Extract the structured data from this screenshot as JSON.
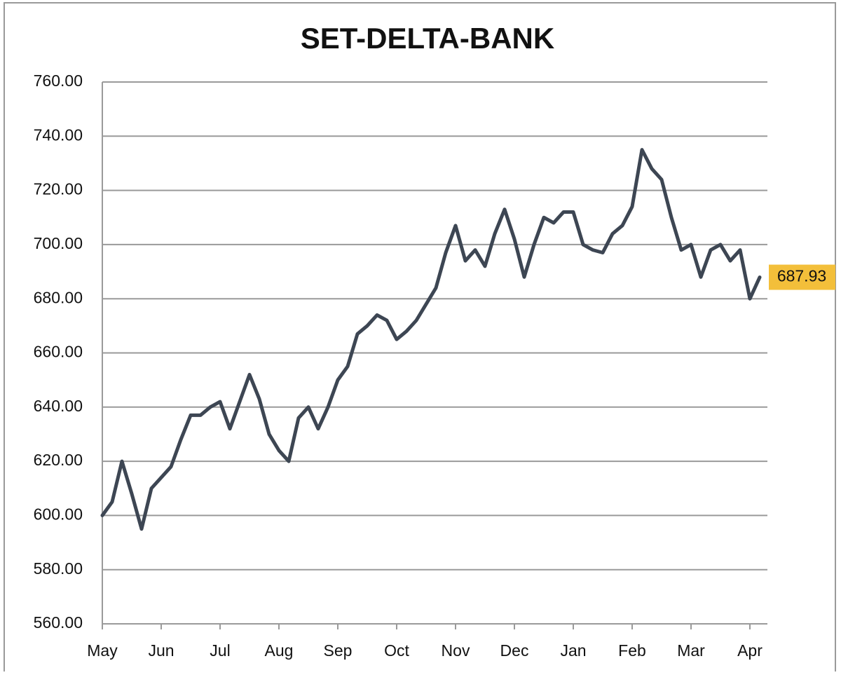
{
  "chart_data": {
    "type": "line",
    "title": "SET-DELTA-BANK",
    "categories": [
      "May",
      null,
      null,
      null,
      null,
      null,
      "Jun",
      null,
      null,
      null,
      null,
      null,
      "Jul",
      null,
      null,
      null,
      null,
      null,
      "Aug",
      null,
      null,
      null,
      null,
      null,
      "Sep",
      null,
      null,
      null,
      null,
      null,
      "Oct",
      null,
      null,
      null,
      null,
      null,
      "Nov",
      null,
      null,
      null,
      null,
      null,
      "Dec",
      null,
      null,
      null,
      null,
      null,
      "Jan",
      null,
      null,
      null,
      null,
      null,
      "Feb",
      null,
      null,
      null,
      null,
      null,
      "Mar",
      null,
      null,
      null,
      null,
      null,
      "Apr",
      null
    ],
    "series": [
      {
        "name": "SET-DELTA-BANK",
        "color": "#3d4653",
        "values": [
          600,
          605,
          620,
          608,
          595,
          610,
          614,
          618,
          628,
          637,
          637,
          640,
          642,
          632,
          642,
          652,
          643,
          630,
          624,
          620,
          636,
          640,
          632,
          640,
          650,
          655,
          667,
          670,
          674,
          672,
          665,
          668,
          672,
          678,
          684,
          697,
          707,
          694,
          698,
          692,
          704,
          713,
          702,
          688,
          700,
          710,
          708,
          712,
          712,
          700,
          698,
          697,
          704,
          707,
          714,
          735,
          728,
          724,
          710,
          698,
          700,
          688,
          698,
          700,
          694,
          698,
          680,
          687.93
        ]
      }
    ],
    "ylim": [
      560,
      760
    ],
    "yticks": [
      {
        "value": 560,
        "label": "560.00"
      },
      {
        "value": 580,
        "label": "580.00"
      },
      {
        "value": 600,
        "label": "600.00"
      },
      {
        "value": 620,
        "label": "620.00"
      },
      {
        "value": 640,
        "label": "640.00"
      },
      {
        "value": 660,
        "label": "660.00"
      },
      {
        "value": 680,
        "label": "680.00"
      },
      {
        "value": 700,
        "label": "700.00"
      },
      {
        "value": 720,
        "label": "720.00"
      },
      {
        "value": 740,
        "label": "740.00"
      },
      {
        "value": 760,
        "label": "760.00"
      }
    ],
    "grid": true,
    "last_label_color": "#f3bf3a"
  }
}
